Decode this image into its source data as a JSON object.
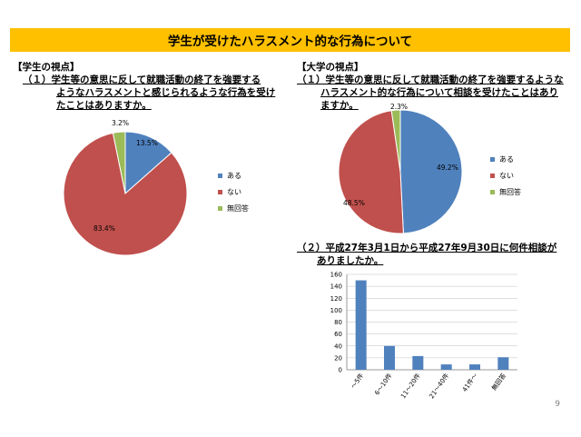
{
  "title": "学生が受けたハラスメント的な行為について",
  "left_section": {
    "label": "【学生の視点】",
    "question_lines": [
      "（１）学生等の意思に反して就職活動の終了を強要する",
      "ようなハラスメントと感じられるような行為を受け",
      "たことはありますか。"
    ]
  },
  "right_section": {
    "label": "【大学の視点】",
    "question_lines": [
      "（１）学生等の意思に反して就職活動の終了を強要するような",
      "ハラスメント的な行為について相談を受けたことはあり",
      "ますか。"
    ],
    "question2_lines": [
      "（２）平成27年3月1日から平成27年9月30日に何件相談が",
      "ありましたか。"
    ]
  },
  "colors": {
    "blue": "#4f81bd",
    "red": "#c0504d",
    "green": "#9bbb59",
    "banner": "#ffc000"
  },
  "chart_data": [
    {
      "type": "pie",
      "categories": [
        "ある",
        "ない",
        "無回答"
      ],
      "values": [
        13.5,
        83.4,
        3.2
      ],
      "labels": [
        "13.5%",
        "83.4%",
        "3.2%"
      ],
      "legend": "right"
    },
    {
      "type": "pie",
      "categories": [
        "ある",
        "ない",
        "無回答"
      ],
      "values": [
        49.2,
        48.5,
        2.3
      ],
      "labels": [
        "49.2%",
        "48.5%",
        "2.3%"
      ],
      "legend": "right"
    },
    {
      "type": "bar",
      "categories": [
        "～5件",
        "6～10件",
        "11～20件",
        "21～40件",
        "41件～",
        "無回答"
      ],
      "values": [
        150,
        40,
        23,
        9,
        9,
        21
      ],
      "yticks": [
        "0",
        "20",
        "40",
        "60",
        "80",
        "100",
        "120",
        "140",
        "160"
      ],
      "ylim": [
        0,
        160
      ],
      "grid": true
    }
  ],
  "page_number": "9"
}
